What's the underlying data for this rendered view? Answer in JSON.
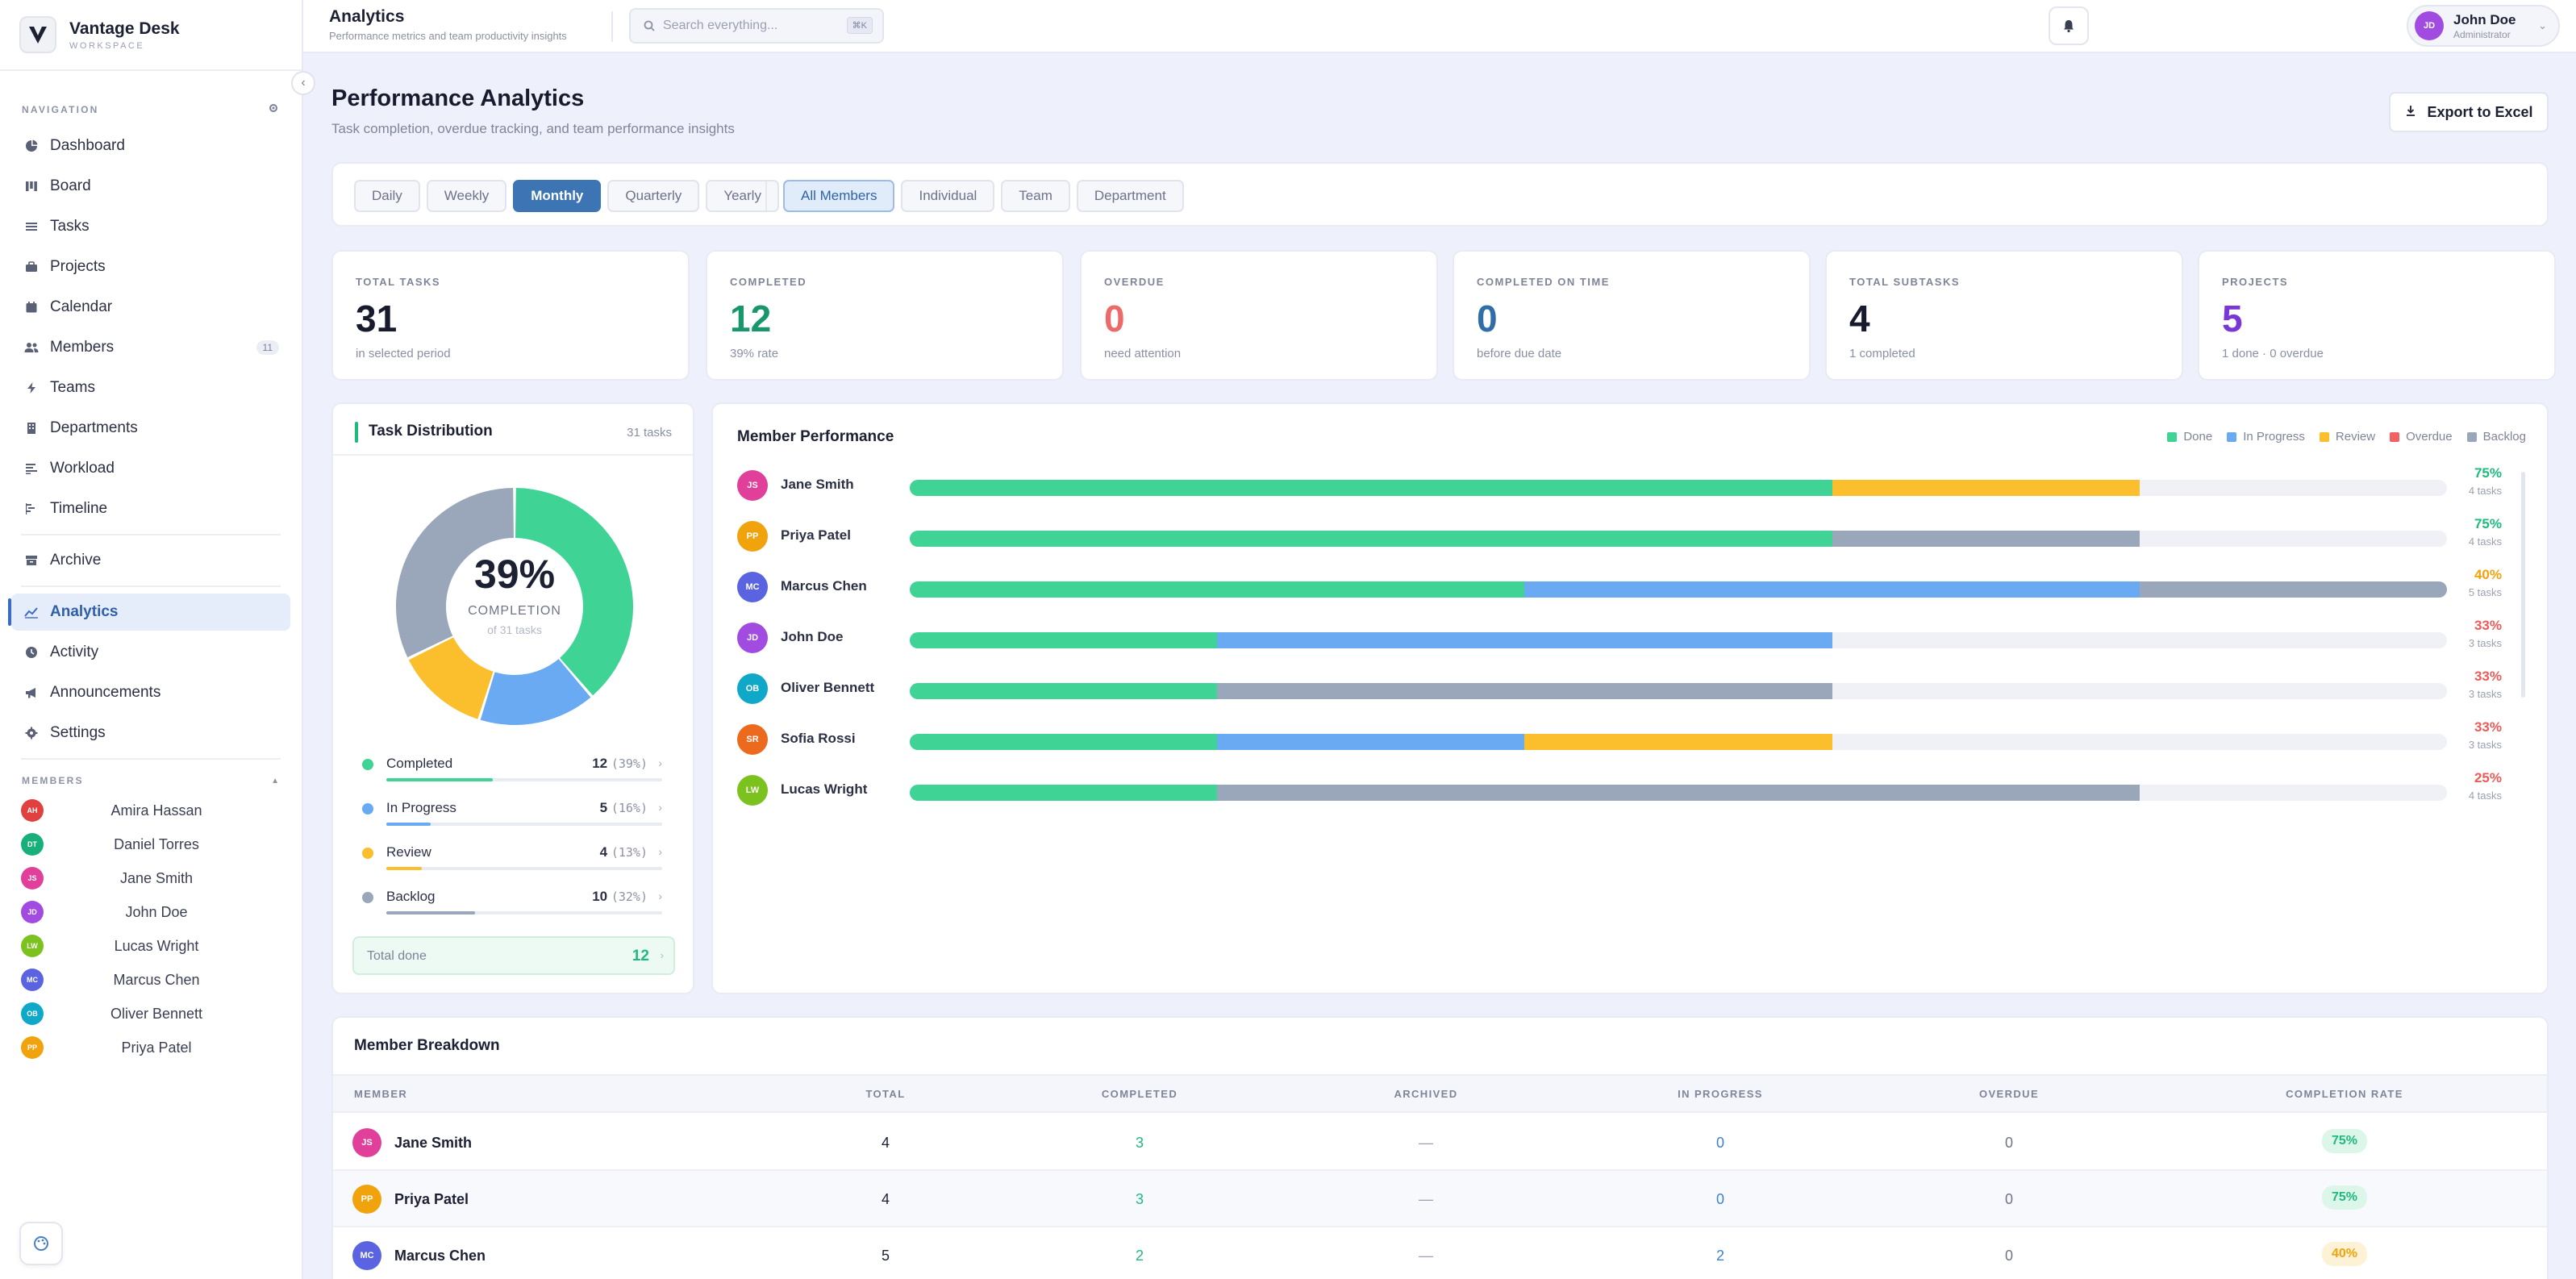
{
  "brand": {
    "name": "Vantage Desk",
    "sub": "WORKSPACE"
  },
  "topbar": {
    "title": "Analytics",
    "subtitle": "Performance metrics and team productivity insights",
    "search_placeholder": "Search everything...",
    "search_shortcut": "⌘K",
    "user": {
      "initials": "JD",
      "name": "John Doe",
      "role": "Administrator"
    }
  },
  "sidebar": {
    "nav_label": "NAVIGATION",
    "nav_items": [
      {
        "label": "Dashboard",
        "icon": "pie-chart-icon"
      },
      {
        "label": "Board",
        "icon": "kanban-icon"
      },
      {
        "label": "Tasks",
        "icon": "checklist-icon"
      },
      {
        "label": "Projects",
        "icon": "briefcase-icon"
      },
      {
        "label": "Calendar",
        "icon": "calendar-icon"
      },
      {
        "label": "Members",
        "icon": "users-icon",
        "count": "11"
      },
      {
        "label": "Teams",
        "icon": "bolt-icon"
      },
      {
        "label": "Departments",
        "icon": "building-icon"
      },
      {
        "label": "Workload",
        "icon": "workload-icon"
      },
      {
        "label": "Timeline",
        "icon": "timeline-icon"
      }
    ],
    "archive_label": "Archive",
    "secondary_items": [
      {
        "label": "Analytics",
        "icon": "analytics-icon",
        "active": true
      },
      {
        "label": "Activity",
        "icon": "clock-icon"
      },
      {
        "label": "Announcements",
        "icon": "megaphone-icon"
      },
      {
        "label": "Settings",
        "icon": "settings-icon"
      }
    ],
    "members_label": "MEMBERS",
    "members": [
      {
        "initials": "AH",
        "name": "Amira Hassan",
        "color": "#e0403f"
      },
      {
        "initials": "DT",
        "name": "Daniel Torres",
        "color": "#18b07a"
      },
      {
        "initials": "JS",
        "name": "Jane Smith",
        "color": "#e0409a"
      },
      {
        "initials": "JD",
        "name": "John Doe",
        "color": "#a24be0"
      },
      {
        "initials": "LW",
        "name": "Lucas Wright",
        "color": "#7cc21e"
      },
      {
        "initials": "MC",
        "name": "Marcus Chen",
        "color": "#5a63e0"
      },
      {
        "initials": "OB",
        "name": "Oliver Bennett",
        "color": "#10a8c8"
      },
      {
        "initials": "PP",
        "name": "Priya Patel",
        "color": "#f0a30c"
      }
    ]
  },
  "page": {
    "title": "Performance Analytics",
    "subtitle": "Task completion, overdue tracking, and team performance insights",
    "export_label": "Export to Excel"
  },
  "filters": {
    "periods": [
      "Daily",
      "Weekly",
      "Monthly",
      "Quarterly",
      "Yearly"
    ],
    "active_period": "Monthly",
    "scopes": [
      "All Members",
      "Individual",
      "Team",
      "Department"
    ],
    "active_scope": "All Members"
  },
  "stats": [
    {
      "label": "TOTAL TASKS",
      "value": "31",
      "note": "in selected period",
      "color": "#171b2d"
    },
    {
      "label": "COMPLETED",
      "value": "12",
      "note": "39% rate",
      "color": "#17976a"
    },
    {
      "label": "OVERDUE",
      "value": "0",
      "note": "need attention",
      "color": "#ec6a6a"
    },
    {
      "label": "COMPLETED ON TIME",
      "value": "0",
      "note": "before due date",
      "color": "#2f6ea8"
    },
    {
      "label": "TOTAL SUBTASKS",
      "value": "4",
      "note": "1 completed",
      "color": "#171b2d"
    },
    {
      "label": "PROJECTS",
      "value": "5",
      "note": "1 done · 0 overdue",
      "color": "#7b36d8"
    }
  ],
  "distribution": {
    "title": "Task Distribution",
    "count_label": "31 tasks",
    "center_pct": "39%",
    "center_label": "COMPLETION",
    "center_sub": "of 31 tasks",
    "items": [
      {
        "name": "Completed",
        "value": 12,
        "pct": "(39%)",
        "color": "#3fd495"
      },
      {
        "name": "In Progress",
        "value": 5,
        "pct": "(16%)",
        "color": "#6aaaf2"
      },
      {
        "name": "Review",
        "value": 4,
        "pct": "(13%)",
        "color": "#fbbf2e"
      },
      {
        "name": "Backlog",
        "value": 10,
        "pct": "(32%)",
        "color": "#9aa6ba"
      }
    ],
    "total_done_label": "Total done",
    "total_done_value": "12"
  },
  "performance": {
    "title": "Member Performance",
    "legend": [
      {
        "name": "Done",
        "color": "#3fd495"
      },
      {
        "name": "In Progress",
        "color": "#6aaaf2"
      },
      {
        "name": "Review",
        "color": "#fbbf2e"
      },
      {
        "name": "Overdue",
        "color": "#f26262"
      },
      {
        "name": "Backlog",
        "color": "#9aa6ba"
      }
    ],
    "rows": [
      {
        "initials": "JS",
        "name": "Jane Smith",
        "color": "#e0409a",
        "done": 3,
        "in_progress": 0,
        "review": 1,
        "overdue": 0,
        "backlog": 0,
        "pct": "75%",
        "pct_color": "#1fba7e",
        "tasks": "4 tasks"
      },
      {
        "initials": "PP",
        "name": "Priya Patel",
        "color": "#f0a30c",
        "done": 3,
        "in_progress": 0,
        "review": 0,
        "overdue": 0,
        "backlog": 1,
        "pct": "75%",
        "pct_color": "#1fba7e",
        "tasks": "4 tasks"
      },
      {
        "initials": "MC",
        "name": "Marcus Chen",
        "color": "#5a63e0",
        "done": 2,
        "in_progress": 2,
        "review": 0,
        "overdue": 0,
        "backlog": 1,
        "pct": "40%",
        "pct_color": "#f0a30c",
        "tasks": "5 tasks"
      },
      {
        "initials": "JD",
        "name": "John Doe",
        "color": "#a24be0",
        "done": 1,
        "in_progress": 2,
        "review": 0,
        "overdue": 0,
        "backlog": 0,
        "pct": "33%",
        "pct_color": "#ec5a5a",
        "tasks": "3 tasks"
      },
      {
        "initials": "OB",
        "name": "Oliver Bennett",
        "color": "#10a8c8",
        "done": 1,
        "in_progress": 0,
        "review": 0,
        "overdue": 0,
        "backlog": 2,
        "pct": "33%",
        "pct_color": "#ec5a5a",
        "tasks": "3 tasks"
      },
      {
        "initials": "SR",
        "name": "Sofia Rossi",
        "color": "#ec6a1e",
        "done": 1,
        "in_progress": 1,
        "review": 1,
        "overdue": 0,
        "backlog": 0,
        "pct": "33%",
        "pct_color": "#ec5a5a",
        "tasks": "3 tasks"
      },
      {
        "initials": "LW",
        "name": "Lucas Wright",
        "color": "#7cc21e",
        "done": 1,
        "in_progress": 0,
        "review": 0,
        "overdue": 0,
        "backlog": 3,
        "pct": "25%",
        "pct_color": "#ec5a5a",
        "tasks": "4 tasks"
      }
    ]
  },
  "breakdown": {
    "title": "Member Breakdown",
    "columns": [
      "MEMBER",
      "TOTAL",
      "COMPLETED",
      "ARCHIVED",
      "IN PROGRESS",
      "OVERDUE",
      "COMPLETION RATE"
    ],
    "rows": [
      {
        "initials": "JS",
        "name": "Jane Smith",
        "color": "#e0409a",
        "total": "4",
        "completed": "3",
        "archived": "—",
        "in_progress": "0",
        "overdue": "0",
        "rate": "75%",
        "rate_bg": "#dcf6ea",
        "rate_color": "#1fba7e"
      },
      {
        "initials": "PP",
        "name": "Priya Patel",
        "color": "#f0a30c",
        "total": "4",
        "completed": "3",
        "archived": "—",
        "in_progress": "0",
        "overdue": "0",
        "rate": "75%",
        "rate_bg": "#dcf6ea",
        "rate_color": "#1fba7e"
      },
      {
        "initials": "MC",
        "name": "Marcus Chen",
        "color": "#5a63e0",
        "total": "5",
        "completed": "2",
        "archived": "—",
        "in_progress": "2",
        "overdue": "0",
        "rate": "40%",
        "rate_bg": "#fdf1d6",
        "rate_color": "#f0a30c"
      }
    ]
  }
}
